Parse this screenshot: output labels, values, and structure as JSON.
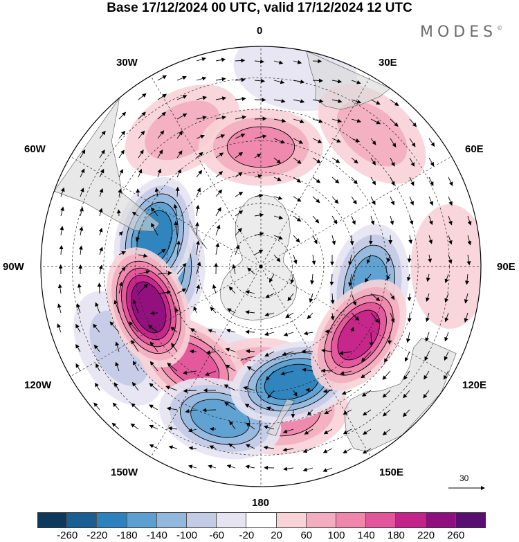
{
  "title": "Base 17/12/2024 00 UTC, valid 17/12/2024 12 UTC",
  "brand": "MODES",
  "brand_mark": "©",
  "longitude_labels": {
    "lon_0": "0",
    "lon_30e": "30E",
    "lon_60e": "60E",
    "lon_90e": "90E",
    "lon_120e": "120E",
    "lon_150e": "150E",
    "lon_180": "180",
    "lon_150w": "150W",
    "lon_120w": "120W",
    "lon_90w": "90W",
    "lon_60w": "60W",
    "lon_30w": "30W"
  },
  "reference_vector": {
    "label": "30"
  },
  "colorbar": {
    "colors": [
      "#0d3a5c",
      "#1a5f93",
      "#2c82bd",
      "#5ba0d0",
      "#93b8dd",
      "#c3cbe5",
      "#e6e4f1",
      "#ffffff",
      "#f7d3d8",
      "#f2aec0",
      "#ef86ab",
      "#e3559a",
      "#c4238a",
      "#8e0f7d",
      "#5a0f70"
    ],
    "tick_labels": [
      "-260",
      "-220",
      "-180",
      "-140",
      "-100",
      "-60",
      "-20",
      "20",
      "60",
      "100",
      "140",
      "180",
      "220",
      "260"
    ]
  },
  "anomaly_centers": [
    {
      "lon": 250,
      "lat": -52,
      "value": 240
    },
    {
      "lon": 125,
      "lat": -52,
      "value": 210
    },
    {
      "lon": 165,
      "lat": -52,
      "value": -190
    },
    {
      "lon": 215,
      "lat": -52,
      "value": 150
    },
    {
      "lon": 180,
      "lat": -55,
      "value": 130
    },
    {
      "lon": 170,
      "lat": -42,
      "value": 110
    },
    {
      "lon": 195,
      "lat": -40,
      "value": -150
    },
    {
      "lon": 200,
      "lat": -55,
      "value": -90
    },
    {
      "lon": 270,
      "lat": -60,
      "value": -170
    },
    {
      "lon": 285,
      "lat": -55,
      "value": -210
    },
    {
      "lon": 100,
      "lat": -55,
      "value": -160
    },
    {
      "lon": 0,
      "lat": -52,
      "value": 110
    },
    {
      "lon": 240,
      "lat": -38,
      "value": -90
    },
    {
      "lon": 90,
      "lat": -30,
      "value": 50
    },
    {
      "lon": 40,
      "lat": -35,
      "value": 60
    },
    {
      "lon": 330,
      "lat": -40,
      "value": 60
    },
    {
      "lon": 10,
      "lat": -27,
      "value": -50
    }
  ]
}
